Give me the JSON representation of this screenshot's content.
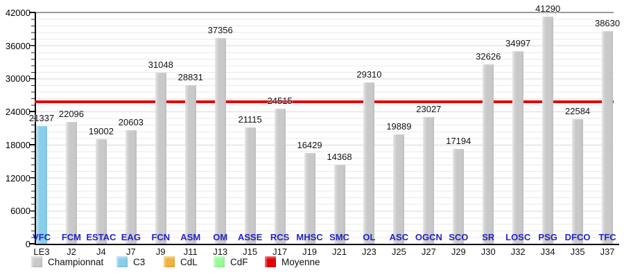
{
  "chart_data": {
    "type": "bar",
    "title": "",
    "categories": [
      "VFC",
      "FCM",
      "ESTAC",
      "EAG",
      "FCN",
      "ASM",
      "OM",
      "ASSE",
      "RCS",
      "MHSC",
      "SMC",
      "OL",
      "ASC",
      "OGCN",
      "SCO",
      "SR",
      "LOSC",
      "PSG",
      "DFCO",
      "TFC"
    ],
    "x_labels": [
      "LE3",
      "J2",
      "J4",
      "J7",
      "J9",
      "J11",
      "J13",
      "J15",
      "J17",
      "J19",
      "J21",
      "J23",
      "J25",
      "J27",
      "J29",
      "J30",
      "J32",
      "J34",
      "J35",
      "J37"
    ],
    "values": [
      21337,
      22096,
      19002,
      20603,
      31048,
      28831,
      37356,
      21115,
      24515,
      16429,
      14368,
      29310,
      19889,
      23027,
      17194,
      32626,
      34997,
      41290,
      22584,
      38630
    ],
    "bar_types": [
      "C3",
      "Championnat",
      "Championnat",
      "Championnat",
      "Championnat",
      "Championnat",
      "Championnat",
      "Championnat",
      "Championnat",
      "Championnat",
      "Championnat",
      "Championnat",
      "Championnat",
      "Championnat",
      "Championnat",
      "Championnat",
      "Championnat",
      "Championnat",
      "Championnat",
      "Championnat"
    ],
    "ylim": [
      0,
      42000
    ],
    "y_ticks": [
      0,
      6000,
      12000,
      18000,
      24000,
      30000,
      36000,
      42000
    ],
    "minor_tick_step": 1200,
    "grid": true,
    "legend_position": "bottom",
    "average_line": {
      "name": "Moyenne",
      "value": 25812
    },
    "series_colors": {
      "Championnat": "#c9c9c9",
      "C3": "#87ceeb",
      "CdL": "#f0b23e",
      "CdF": "#98fb98",
      "Moyenne": "#e10000"
    }
  },
  "legend": {
    "items": [
      {
        "label": "Championnat",
        "key": "Championnat"
      },
      {
        "label": "C3",
        "key": "C3"
      },
      {
        "label": "CdL",
        "key": "CdL"
      },
      {
        "label": "CdF",
        "key": "CdF"
      },
      {
        "label": "Moyenne",
        "key": "Moyenne"
      }
    ]
  },
  "colors": {
    "team_label": "#2323c4",
    "value_label": "#111111",
    "axis": "#000000"
  }
}
